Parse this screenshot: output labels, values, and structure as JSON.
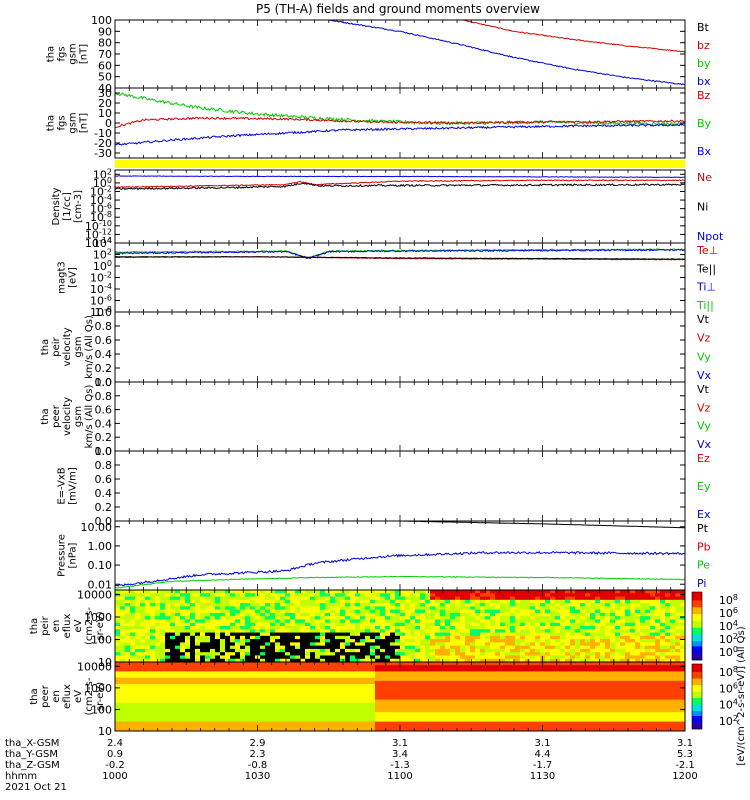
{
  "title": "P5 (TH-A) fields and ground moments overview",
  "colors": {
    "black": "#000000",
    "red": "#d00000",
    "green": "#00cc00",
    "blue": "#0000dd",
    "yellow": "#ffff00"
  },
  "chart_data": [
    {
      "type": "line",
      "name": "fgs_gsm_high",
      "ylabel": [
        "tha",
        "fgs",
        "gsm",
        "[nT]"
      ],
      "ylim": [
        40,
        100
      ],
      "yticks": [
        "100",
        "90",
        "80",
        "70",
        "60",
        "50",
        "40"
      ],
      "legend": [
        {
          "text": "Bt",
          "color": "black"
        },
        {
          "text": "bz",
          "color": "red"
        },
        {
          "text": "by",
          "color": "green"
        },
        {
          "text": "bx",
          "color": "blue"
        }
      ],
      "series": [
        {
          "name": "Bt",
          "color": "black",
          "x": [
            1000,
            1100,
            1200
          ],
          "y": [
            null,
            null,
            null
          ]
        },
        {
          "name": "bz",
          "color": "red",
          "x": [
            1122,
            1140,
            1160,
            1180,
            1200
          ],
          "y": [
            100,
            90,
            83,
            77,
            72
          ],
          "noise": 0.4
        },
        {
          "name": "bx",
          "color": "blue",
          "x": [
            1075,
            1100,
            1120,
            1140,
            1160,
            1180,
            1200
          ],
          "y": [
            100,
            90,
            79,
            67,
            57,
            49,
            43
          ],
          "noise": 0.5
        }
      ]
    },
    {
      "type": "line",
      "name": "fgs_gsm",
      "ylabel": [
        "tha",
        "fgs",
        "gsm",
        "[nT]"
      ],
      "ylim": [
        -35,
        35
      ],
      "yticks": [
        "30",
        "20",
        "10",
        "0",
        "-10",
        "-20",
        "-30"
      ],
      "legend": [
        {
          "text": "Bz",
          "color": "red"
        },
        {
          "text": "By",
          "color": "green"
        },
        {
          "text": "Bx",
          "color": "blue"
        }
      ],
      "series": [
        {
          "name": "By",
          "color": "green",
          "x": [
            1000,
            1015,
            1030,
            1050,
            1070,
            1090,
            1110,
            1130,
            1150,
            1170,
            1200
          ],
          "y": [
            30,
            22,
            15,
            9,
            5,
            2,
            0,
            0,
            1,
            0,
            -1
          ],
          "noise": 1.6
        },
        {
          "name": "Bz",
          "color": "red",
          "x": [
            1000,
            1010,
            1030,
            1060,
            1090,
            1120,
            1150,
            1200
          ],
          "y": [
            -4,
            3,
            5,
            4,
            1,
            0,
            1,
            2
          ],
          "noise": 1.0
        },
        {
          "name": "Bx",
          "color": "blue",
          "x": [
            1000,
            1020,
            1040,
            1060,
            1080,
            1100,
            1120,
            1140,
            1160,
            1200
          ],
          "y": [
            -22,
            -17,
            -13,
            -10,
            -7,
            -6,
            -5,
            -4,
            -3,
            -2
          ],
          "noise": 1.0
        }
      ]
    },
    {
      "type": "bar",
      "name": "status_bar",
      "color": "yellow"
    },
    {
      "type": "line",
      "name": "density",
      "log": true,
      "ylabel": [
        "Density",
        "[1/cc]",
        "[cm-3]"
      ],
      "ylim": [
        -14,
        3
      ],
      "yticks": [
        "10^2",
        "10^0",
        "10^-2",
        "10^-4",
        "10^-6",
        "10^-8",
        "10^-10",
        "10^-12",
        "10^-14"
      ],
      "legend": [
        {
          "text": "Ne",
          "color": "red"
        },
        {
          "text": "Ni",
          "color": "black"
        },
        {
          "text": "Npot",
          "color": "blue"
        }
      ],
      "series": [
        {
          "name": "Npot",
          "color": "blue",
          "x": [
            1000,
            1050,
            1100,
            1150,
            1200
          ],
          "y": [
            1.6,
            1.5,
            1.5,
            1.4,
            1.3
          ],
          "noise": 0.05
        },
        {
          "name": "Ne",
          "color": "red",
          "x": [
            1000,
            1040,
            1060,
            1065,
            1070,
            1100,
            1150,
            1200
          ],
          "y": [
            -1.0,
            -0.6,
            -0.4,
            0.3,
            -0.4,
            0.4,
            0.6,
            0.6
          ],
          "noise": 0.1
        },
        {
          "name": "Ni",
          "color": "black",
          "x": [
            1000,
            1040,
            1060,
            1066,
            1072,
            1100,
            1150,
            1200
          ],
          "y": [
            -1.4,
            -1.1,
            -0.8,
            0.0,
            -0.7,
            -0.6,
            -0.5,
            -0.4
          ],
          "noise": 0.2
        }
      ]
    },
    {
      "type": "line",
      "name": "temperature",
      "log": true,
      "ylabel": [
        "magt3",
        "[eV]"
      ],
      "ylim": [
        -8,
        4
      ],
      "yticks": [
        "10^4",
        "10^2",
        "10^0",
        "10^-2",
        "10^-4",
        "10^-6",
        "10^-8"
      ],
      "legend": [
        {
          "text": "Te⊥",
          "color": "red"
        },
        {
          "text": "Te||",
          "color": "black"
        },
        {
          "text": "Ti⊥",
          "color": "blue"
        },
        {
          "text": "Ti||",
          "color": "green"
        }
      ],
      "series": [
        {
          "name": "Ti||",
          "color": "green",
          "x": [
            1000,
            1060,
            1068,
            1075,
            1100,
            1150,
            1200
          ],
          "y": [
            2.4,
            2.6,
            1.4,
            2.6,
            2.7,
            2.8,
            2.9
          ],
          "noise": 0.1
        },
        {
          "name": "Ti⊥",
          "color": "blue",
          "x": [
            1000,
            1060,
            1068,
            1075,
            1100,
            1150,
            1200
          ],
          "y": [
            2.2,
            2.5,
            1.3,
            2.5,
            2.6,
            2.7,
            2.8
          ],
          "noise": 0.12
        },
        {
          "name": "Te⊥",
          "color": "red",
          "x": [
            1000,
            1050,
            1100,
            1150,
            1200
          ],
          "y": [
            1.5,
            1.6,
            1.3,
            1.2,
            1.1
          ],
          "noise": 0.05
        },
        {
          "name": "Te||",
          "color": "black",
          "x": [
            1000,
            1050,
            1100,
            1150,
            1200
          ],
          "y": [
            1.6,
            1.6,
            1.4,
            1.3,
            1.2
          ],
          "noise": 0.04
        }
      ]
    },
    {
      "type": "line",
      "name": "peir_velocity",
      "ylabel": [
        "tha",
        "peir",
        "velocity",
        "gsm",
        "km/s (All Qs)"
      ],
      "ylim": [
        0,
        1
      ],
      "yticks": [
        "1.0",
        "0.8",
        "0.6",
        "0.4",
        "0.2",
        "0.0"
      ],
      "legend": [
        {
          "text": "Vt",
          "color": "black"
        },
        {
          "text": "Vz",
          "color": "red"
        },
        {
          "text": "Vy",
          "color": "green"
        },
        {
          "text": "Vx",
          "color": "blue"
        }
      ],
      "series": []
    },
    {
      "type": "line",
      "name": "peer_velocity",
      "ylabel": [
        "tha",
        "peer",
        "velocity",
        "gsm",
        "km/s (All Qs)"
      ],
      "ylim": [
        0,
        1
      ],
      "yticks": [
        "1.0",
        "0.8",
        "0.6",
        "0.4",
        "0.2",
        "0.0"
      ],
      "legend": [
        {
          "text": "Vt",
          "color": "black"
        },
        {
          "text": "Vz",
          "color": "red"
        },
        {
          "text": "Vy",
          "color": "green"
        },
        {
          "text": "Vx",
          "color": "blue"
        }
      ],
      "series": []
    },
    {
      "type": "line",
      "name": "efield",
      "ylabel": [
        "E=-VxB",
        "[mV/m]"
      ],
      "ylim": [
        0,
        1
      ],
      "yticks": [
        "1.0",
        "0.8",
        "0.6",
        "0.4",
        "0.2",
        "0.0"
      ],
      "legend": [
        {
          "text": "Ez",
          "color": "red"
        },
        {
          "text": "Ey",
          "color": "green"
        },
        {
          "text": "Ex",
          "color": "blue"
        }
      ],
      "series": []
    },
    {
      "type": "line",
      "name": "pressure",
      "log": true,
      "ylabel": [
        "Pressure",
        "[nPa]"
      ],
      "ylim": [
        -2.3,
        1.3
      ],
      "yticks": [
        "10.00",
        "1.00",
        "0.10",
        "0.01"
      ],
      "ytick_values": [
        1,
        0,
        -1,
        -2
      ],
      "legend": [
        {
          "text": "Pt",
          "color": "black"
        },
        {
          "text": "Pb",
          "color": "red"
        },
        {
          "text": "Pe",
          "color": "green"
        },
        {
          "text": "Pi",
          "color": "blue"
        }
      ],
      "series": [
        {
          "name": "Pt",
          "color": "black",
          "x": [
            1100,
            1150,
            1200
          ],
          "y": [
            1.3,
            1.15,
            0.95
          ],
          "noise": 0.005
        },
        {
          "name": "Pi",
          "color": "blue",
          "x": [
            1000,
            1010,
            1030,
            1060,
            1070,
            1090,
            1100,
            1130,
            1150,
            1200
          ],
          "y": [
            -2.1,
            -1.9,
            -1.5,
            -1.3,
            -0.9,
            -0.6,
            -0.5,
            -0.35,
            -0.35,
            -0.4
          ],
          "noise": 0.06
        },
        {
          "name": "Pe",
          "color": "green",
          "x": [
            1000,
            1020,
            1040,
            1070,
            1100,
            1150,
            1200
          ],
          "y": [
            -2.2,
            -1.85,
            -1.75,
            -1.65,
            -1.6,
            -1.65,
            -1.75
          ],
          "noise": 0.02
        }
      ]
    },
    {
      "type": "heatmap",
      "name": "peir_spectrogram",
      "ylabel": [
        "tha",
        "peir",
        "en",
        "eflux",
        "eV",
        "(cm2-s-",
        "sr-eV)"
      ],
      "ylim": [
        1,
        4.2
      ],
      "yticks": [
        "10000",
        "1000",
        "100",
        "10"
      ],
      "ytick_values": [
        4,
        3,
        2,
        1
      ],
      "colorbar": [
        "10^8",
        "10^6",
        "10^4",
        "10^2",
        "10^0"
      ],
      "colorbar_label": "[eV/(cm^2-s-sr-eV)] (All Qs)"
    },
    {
      "type": "heatmap",
      "name": "peer_spectrogram",
      "ylabel": [
        "tha",
        "peer",
        "en",
        "eflux",
        "eV",
        "(cm2-s-",
        "sr-eV)"
      ],
      "ylim": [
        1,
        4.2
      ],
      "yticks": [
        "10000",
        "1000",
        "100",
        "10"
      ],
      "ytick_values": [
        4,
        3,
        2,
        1
      ],
      "colorbar": [
        "10^8",
        "10^6",
        "10^4",
        "10^2"
      ],
      "colorbar_label": "[eV/(cm^2-s-sr-eV)] (All Qs)"
    }
  ],
  "xaxis": {
    "xlim": [
      1000,
      1200
    ],
    "ticks": [
      1000,
      1050,
      1100,
      1150,
      1200
    ],
    "rows": [
      {
        "label": "tha_X-GSM",
        "values": [
          "2.4",
          "2.9",
          "3.1",
          "3.1",
          "3.1"
        ]
      },
      {
        "label": "tha_Y-GSM",
        "values": [
          "0.9",
          "2.3",
          "3.4",
          "4.4",
          "5.3"
        ]
      },
      {
        "label": "tha_Z-GSM",
        "values": [
          "-0.2",
          "-0.8",
          "-1.3",
          "-1.7",
          "-2.1"
        ]
      },
      {
        "label": "hhmm",
        "values": [
          "1000",
          "1030",
          "1100",
          "1130",
          "1200"
        ]
      }
    ],
    "date": "2021 Oct 21"
  }
}
